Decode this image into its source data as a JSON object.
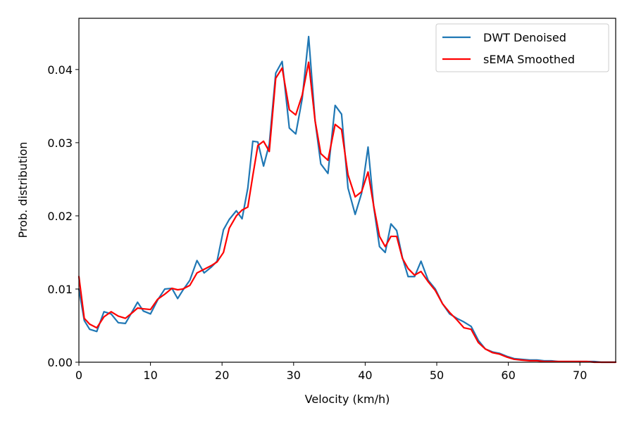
{
  "chart_data": {
    "type": "line",
    "title": "",
    "xlabel": "Velocity (km/h)",
    "ylabel": "Prob. distribution",
    "xlim": [
      0,
      75
    ],
    "ylim": [
      0,
      0.047
    ],
    "xticks": [
      0,
      10,
      20,
      30,
      40,
      50,
      60,
      70
    ],
    "xtick_labels": [
      "0",
      "10",
      "20",
      "30",
      "40",
      "50",
      "60",
      "70"
    ],
    "yticks": [
      0.0,
      0.01,
      0.02,
      0.03,
      0.04
    ],
    "ytick_labels": [
      "0.00",
      "0.01",
      "0.02",
      "0.03",
      "0.04"
    ],
    "grid": false,
    "legend_position": "top-right",
    "series": [
      {
        "name": "DWT Denoised",
        "color": "#1f77b4",
        "x": [
          0,
          0.75,
          1.5,
          2.5,
          3.5,
          4.5,
          5.5,
          6.5,
          7.5,
          8.2,
          9.0,
          10.0,
          11.0,
          12.0,
          13.0,
          13.8,
          14.5,
          15.5,
          16.5,
          17.5,
          18.5,
          19.3,
          20.2,
          21.0,
          22.0,
          22.8,
          23.6,
          24.3,
          25.0,
          25.8,
          26.6,
          27.5,
          28.4,
          29.4,
          30.3,
          31.2,
          32.1,
          33.0,
          33.8,
          34.8,
          35.8,
          36.7,
          37.6,
          38.6,
          39.5,
          40.4,
          41.2,
          42.0,
          42.8,
          43.6,
          44.4,
          45.2,
          46.0,
          46.9,
          47.8,
          48.8,
          49.8,
          50.8,
          51.8,
          52.8,
          53.8,
          54.8,
          55.8,
          56.8,
          57.8,
          58.8,
          59.8,
          60.8,
          61.8,
          63.0,
          64.0,
          65.0,
          66.0,
          67.0,
          68.0,
          69.0,
          70.0,
          71.0,
          72.0,
          73.0,
          74.0,
          75.0
        ],
        "y": [
          0.01,
          0.0057,
          0.0045,
          0.0042,
          0.0069,
          0.0066,
          0.0054,
          0.0053,
          0.007,
          0.0082,
          0.007,
          0.0066,
          0.0085,
          0.01,
          0.0101,
          0.0087,
          0.0098,
          0.0112,
          0.0139,
          0.0122,
          0.013,
          0.0138,
          0.0181,
          0.0195,
          0.0207,
          0.0196,
          0.0238,
          0.0302,
          0.0301,
          0.0268,
          0.0298,
          0.0395,
          0.0411,
          0.032,
          0.0312,
          0.036,
          0.0445,
          0.033,
          0.0271,
          0.0258,
          0.0351,
          0.0339,
          0.0238,
          0.0202,
          0.0231,
          0.0294,
          0.0212,
          0.0158,
          0.015,
          0.0189,
          0.018,
          0.0143,
          0.0117,
          0.0117,
          0.0138,
          0.0112,
          0.01,
          0.008,
          0.0066,
          0.006,
          0.0055,
          0.0049,
          0.003,
          0.0018,
          0.0014,
          0.0012,
          0.0008,
          0.0005,
          0.0004,
          0.0003,
          0.0003,
          0.0002,
          0.0002,
          0.0001,
          0.0001,
          0.0001,
          0.0001,
          0.0001,
          0.0001,
          0.0,
          0.0,
          0.0
        ]
      },
      {
        "name": "sEMA Smoothed",
        "color": "#ff0000",
        "x": [
          0,
          0.75,
          1.5,
          2.5,
          3.5,
          4.5,
          5.5,
          6.5,
          7.5,
          8.2,
          9.0,
          10.0,
          11.0,
          12.0,
          13.0,
          13.8,
          14.5,
          15.5,
          16.5,
          17.5,
          18.5,
          19.3,
          20.2,
          21.0,
          22.0,
          22.8,
          23.6,
          24.3,
          25.0,
          25.8,
          26.6,
          27.5,
          28.4,
          29.4,
          30.3,
          31.2,
          32.1,
          33.0,
          33.8,
          34.8,
          35.8,
          36.7,
          37.6,
          38.6,
          39.5,
          40.4,
          41.2,
          42.0,
          42.8,
          43.6,
          44.4,
          45.2,
          46.0,
          46.9,
          47.8,
          48.8,
          49.8,
          50.8,
          51.8,
          52.8,
          53.8,
          54.8,
          55.8,
          56.8,
          57.8,
          58.8,
          59.8,
          60.8,
          61.8,
          63.0,
          64.0,
          65.0,
          66.0,
          67.0,
          68.0,
          69.0,
          70.0,
          71.0,
          72.0,
          73.0,
          74.0,
          75.0
        ],
        "y": [
          0.0117,
          0.006,
          0.0052,
          0.0047,
          0.0062,
          0.0069,
          0.0063,
          0.006,
          0.0068,
          0.0074,
          0.0073,
          0.0072,
          0.0086,
          0.0093,
          0.0101,
          0.0099,
          0.01,
          0.0105,
          0.0122,
          0.0127,
          0.0132,
          0.0137,
          0.015,
          0.0183,
          0.02,
          0.0208,
          0.0212,
          0.0255,
          0.0296,
          0.0302,
          0.0288,
          0.0388,
          0.0402,
          0.0345,
          0.0338,
          0.0365,
          0.041,
          0.033,
          0.0285,
          0.0276,
          0.0325,
          0.0318,
          0.0256,
          0.0226,
          0.0233,
          0.026,
          0.0213,
          0.0172,
          0.0158,
          0.0172,
          0.0172,
          0.0142,
          0.0128,
          0.0119,
          0.0124,
          0.011,
          0.0098,
          0.008,
          0.0068,
          0.0058,
          0.0047,
          0.0045,
          0.0027,
          0.0018,
          0.0013,
          0.0011,
          0.0007,
          0.0004,
          0.0003,
          0.0002,
          0.0002,
          0.0001,
          0.0001,
          0.0001,
          0.0001,
          0.0001,
          0.0001,
          0.0001,
          0.0,
          0.0,
          0.0,
          0.0
        ]
      }
    ]
  }
}
